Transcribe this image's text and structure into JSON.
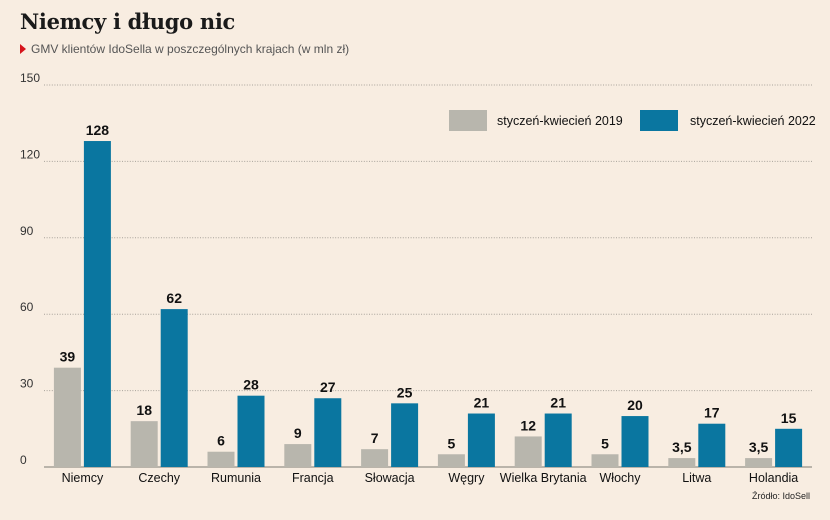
{
  "header": {
    "title": "Niemcy i długo nic",
    "subtitle": "GMV klientów IdoSella w poszczególnych krajach (w mln zł)"
  },
  "source": "Źródło: IdoSell",
  "colors": {
    "series_2019": "#b8b6ad",
    "series_2022": "#0a76a0",
    "background": "#f8ede1",
    "marker": "#d6141b"
  },
  "chart_data": {
    "type": "bar",
    "title": "Niemcy i długo nic",
    "subtitle": "GMV klientów IdoSella w poszczególnych krajach (w mln zł)",
    "xlabel": "",
    "ylabel": "",
    "ylim": [
      0,
      150
    ],
    "yticks": [
      0,
      30,
      60,
      90,
      120,
      150
    ],
    "grid": true,
    "legend_position": "top-right",
    "categories": [
      "Niemcy",
      "Czechy",
      "Rumunia",
      "Francja",
      "Słowacja",
      "Węgry",
      "Wielka Brytania",
      "Włochy",
      "Litwa",
      "Holandia"
    ],
    "series": [
      {
        "name": "styczeń-kwiecień 2019",
        "values": [
          39,
          18,
          6,
          9,
          7,
          5,
          12,
          5,
          3.5,
          3.5
        ],
        "labels": [
          "39",
          "18",
          "6",
          "9",
          "7",
          "5",
          "12",
          "5",
          "3,5",
          "3,5"
        ]
      },
      {
        "name": "styczeń-kwiecień 2022",
        "values": [
          128,
          62,
          28,
          27,
          25,
          21,
          21,
          20,
          17,
          15
        ],
        "labels": [
          "128",
          "62",
          "28",
          "27",
          "25",
          "21",
          "21",
          "20",
          "17",
          "15"
        ]
      }
    ]
  }
}
